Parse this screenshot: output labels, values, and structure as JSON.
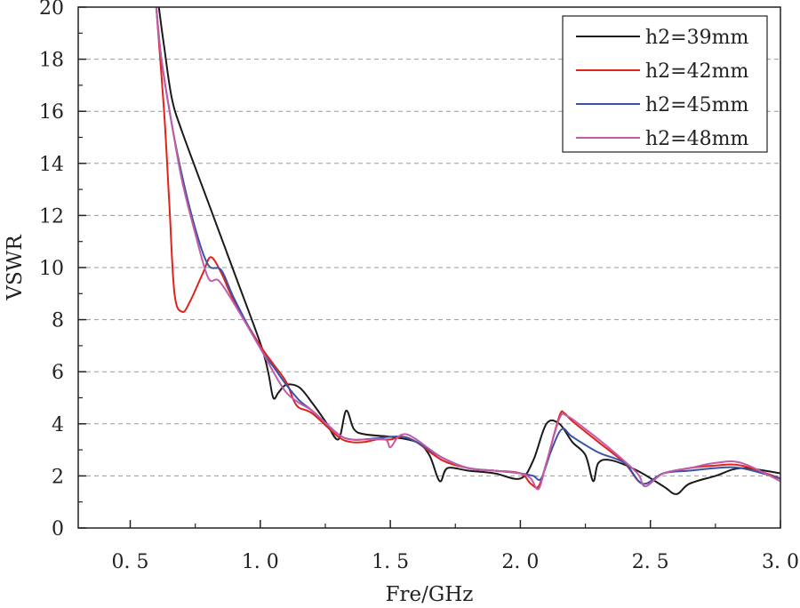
{
  "chart_data": {
    "type": "line",
    "xlabel": "Fre/GHz",
    "ylabel": "VSWR",
    "xlim": [
      0.3,
      3.0
    ],
    "ylim": [
      0,
      20
    ],
    "x_ticks": [
      0.5,
      1.0,
      1.5,
      2.0,
      2.5,
      3.0
    ],
    "x_tick_labels": [
      "0. 5",
      "1. 0",
      "1. 5",
      "2. 0",
      "2. 5",
      "3. 0"
    ],
    "y_ticks": [
      0,
      2,
      4,
      6,
      8,
      10,
      12,
      14,
      16,
      18,
      20
    ],
    "y_tick_labels": [
      "0",
      "2",
      "4",
      "6",
      "8",
      "10",
      "12",
      "14",
      "16",
      "18",
      "20"
    ],
    "grid": "horizontal-dashed",
    "legend": "top-right",
    "series": [
      {
        "name": "h2=39mm",
        "color": "#1a1a1a",
        "points": [
          [
            0.61,
            20
          ],
          [
            0.63,
            18.5
          ],
          [
            0.66,
            16.5
          ],
          [
            0.7,
            15.2
          ],
          [
            0.8,
            12.5
          ],
          [
            0.9,
            9.8
          ],
          [
            1.0,
            7.1
          ],
          [
            1.03,
            6.0
          ],
          [
            1.05,
            5.0
          ],
          [
            1.07,
            5.2
          ],
          [
            1.1,
            5.5
          ],
          [
            1.15,
            5.4
          ],
          [
            1.2,
            4.8
          ],
          [
            1.25,
            4.1
          ],
          [
            1.3,
            3.4
          ],
          [
            1.33,
            4.5
          ],
          [
            1.36,
            3.8
          ],
          [
            1.4,
            3.6
          ],
          [
            1.5,
            3.5
          ],
          [
            1.6,
            3.3
          ],
          [
            1.65,
            2.8
          ],
          [
            1.69,
            1.8
          ],
          [
            1.72,
            2.3
          ],
          [
            1.8,
            2.2
          ],
          [
            1.9,
            2.1
          ],
          [
            2.0,
            1.9
          ],
          [
            2.05,
            2.6
          ],
          [
            2.1,
            4.0
          ],
          [
            2.15,
            4.0
          ],
          [
            2.2,
            3.3
          ],
          [
            2.25,
            2.8
          ],
          [
            2.28,
            1.8
          ],
          [
            2.3,
            2.5
          ],
          [
            2.35,
            2.6
          ],
          [
            2.45,
            2.2
          ],
          [
            2.55,
            1.6
          ],
          [
            2.6,
            1.3
          ],
          [
            2.65,
            1.7
          ],
          [
            2.75,
            2.0
          ],
          [
            2.85,
            2.3
          ],
          [
            3.0,
            2.1
          ]
        ]
      },
      {
        "name": "h2=42mm",
        "color": "#e0231b",
        "points": [
          [
            0.6,
            20
          ],
          [
            0.63,
            16
          ],
          [
            0.65,
            12.5
          ],
          [
            0.67,
            9.0
          ],
          [
            0.7,
            8.3
          ],
          [
            0.73,
            8.7
          ],
          [
            0.78,
            9.8
          ],
          [
            0.81,
            10.4
          ],
          [
            0.85,
            9.8
          ],
          [
            0.9,
            8.7
          ],
          [
            1.0,
            7.0
          ],
          [
            1.05,
            6.3
          ],
          [
            1.1,
            5.6
          ],
          [
            1.14,
            4.7
          ],
          [
            1.2,
            4.4
          ],
          [
            1.3,
            3.5
          ],
          [
            1.35,
            3.3
          ],
          [
            1.4,
            3.3
          ],
          [
            1.45,
            3.4
          ],
          [
            1.5,
            3.4
          ],
          [
            1.55,
            3.5
          ],
          [
            1.6,
            3.3
          ],
          [
            1.7,
            2.6
          ],
          [
            1.8,
            2.3
          ],
          [
            1.9,
            2.2
          ],
          [
            2.0,
            2.1
          ],
          [
            2.04,
            1.7
          ],
          [
            2.07,
            1.6
          ],
          [
            2.1,
            2.5
          ],
          [
            2.15,
            4.3
          ],
          [
            2.17,
            4.4
          ],
          [
            2.2,
            4.1
          ],
          [
            2.3,
            3.3
          ],
          [
            2.4,
            2.5
          ],
          [
            2.47,
            1.7
          ],
          [
            2.55,
            2.1
          ],
          [
            2.65,
            2.3
          ],
          [
            2.75,
            2.4
          ],
          [
            2.85,
            2.4
          ],
          [
            3.0,
            1.9
          ]
        ]
      },
      {
        "name": "h2=45mm",
        "color": "#3a52a8",
        "points": [
          [
            0.6,
            20
          ],
          [
            0.62,
            18.0
          ],
          [
            0.66,
            15.5
          ],
          [
            0.7,
            13.5
          ],
          [
            0.75,
            11.5
          ],
          [
            0.8,
            10.1
          ],
          [
            0.85,
            9.9
          ],
          [
            0.9,
            8.8
          ],
          [
            1.0,
            6.9
          ],
          [
            1.05,
            6.2
          ],
          [
            1.1,
            5.5
          ],
          [
            1.15,
            4.9
          ],
          [
            1.2,
            4.5
          ],
          [
            1.3,
            3.6
          ],
          [
            1.35,
            3.4
          ],
          [
            1.4,
            3.4
          ],
          [
            1.5,
            3.5
          ],
          [
            1.55,
            3.5
          ],
          [
            1.6,
            3.3
          ],
          [
            1.7,
            2.7
          ],
          [
            1.8,
            2.3
          ],
          [
            1.9,
            2.2
          ],
          [
            2.0,
            2.1
          ],
          [
            2.05,
            2.0
          ],
          [
            2.08,
            1.9
          ],
          [
            2.12,
            3.0
          ],
          [
            2.16,
            3.8
          ],
          [
            2.2,
            3.5
          ],
          [
            2.3,
            2.9
          ],
          [
            2.4,
            2.5
          ],
          [
            2.47,
            1.7
          ],
          [
            2.55,
            2.1
          ],
          [
            2.65,
            2.2
          ],
          [
            2.75,
            2.3
          ],
          [
            2.85,
            2.3
          ],
          [
            3.0,
            1.9
          ]
        ]
      },
      {
        "name": "h2=48mm",
        "color": "#c25ba8",
        "points": [
          [
            0.6,
            20
          ],
          [
            0.62,
            18.0
          ],
          [
            0.66,
            15.5
          ],
          [
            0.7,
            13.3
          ],
          [
            0.75,
            11.3
          ],
          [
            0.8,
            9.6
          ],
          [
            0.84,
            9.5
          ],
          [
            0.9,
            8.6
          ],
          [
            1.0,
            6.9
          ],
          [
            1.05,
            6.0
          ],
          [
            1.1,
            5.2
          ],
          [
            1.15,
            4.8
          ],
          [
            1.2,
            4.5
          ],
          [
            1.3,
            3.6
          ],
          [
            1.35,
            3.4
          ],
          [
            1.4,
            3.4
          ],
          [
            1.48,
            3.4
          ],
          [
            1.5,
            3.1
          ],
          [
            1.53,
            3.5
          ],
          [
            1.56,
            3.6
          ],
          [
            1.6,
            3.4
          ],
          [
            1.7,
            2.7
          ],
          [
            1.8,
            2.3
          ],
          [
            1.9,
            2.2
          ],
          [
            2.0,
            2.1
          ],
          [
            2.04,
            1.9
          ],
          [
            2.07,
            1.5
          ],
          [
            2.1,
            2.5
          ],
          [
            2.15,
            4.2
          ],
          [
            2.18,
            4.3
          ],
          [
            2.25,
            3.8
          ],
          [
            2.35,
            3.0
          ],
          [
            2.45,
            2.1
          ],
          [
            2.48,
            1.6
          ],
          [
            2.55,
            2.1
          ],
          [
            2.65,
            2.3
          ],
          [
            2.75,
            2.5
          ],
          [
            2.85,
            2.5
          ],
          [
            3.0,
            1.8
          ]
        ]
      }
    ]
  }
}
